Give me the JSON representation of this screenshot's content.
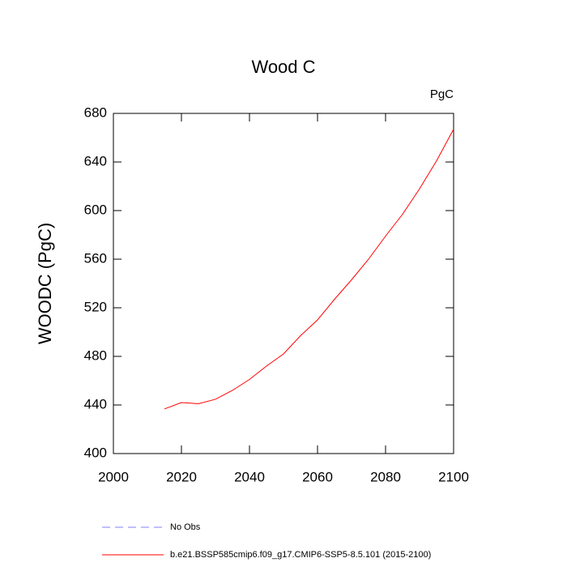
{
  "chart_data": {
    "type": "line",
    "title": "Wood C",
    "units_label": "PgC",
    "ylabel": "WOODC  (PgC)",
    "x": [
      2015,
      2020,
      2025,
      2030,
      2035,
      2040,
      2045,
      2050,
      2055,
      2060,
      2065,
      2070,
      2075,
      2080,
      2085,
      2090,
      2095,
      2100
    ],
    "series": [
      {
        "name": "No Obs",
        "color": "#8080ff",
        "dashed": true,
        "values": [
          null,
          null,
          null,
          null,
          null,
          null,
          null,
          null,
          null,
          null,
          null,
          null,
          null,
          null,
          null,
          null,
          null,
          null
        ]
      },
      {
        "name": "b.e21.BSSP585cmip6.f09_g17.CMIP6-SSP5-8.5.101 (2015-2100)",
        "color": "#ff0000",
        "dashed": false,
        "values": [
          436.7,
          442,
          441,
          444.7,
          452,
          461,
          472,
          482,
          497,
          510,
          527,
          543,
          560,
          579,
          597,
          618,
          641,
          667
        ]
      }
    ],
    "xlim": [
      2000,
      2100
    ],
    "xticks": [
      2000,
      2020,
      2040,
      2060,
      2080,
      2100
    ],
    "ylim": [
      400,
      680
    ],
    "yticks": [
      400,
      440,
      480,
      520,
      560,
      600,
      640,
      680
    ],
    "grid": false
  }
}
